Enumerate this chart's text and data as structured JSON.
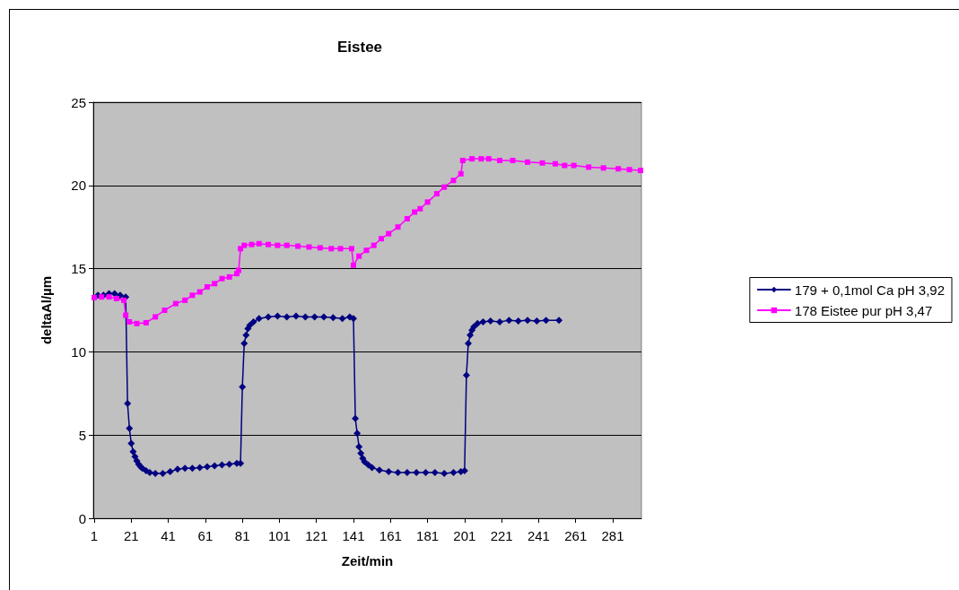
{
  "chart_data": {
    "type": "line",
    "title": "Eistee",
    "xlabel": "Zeit/min",
    "ylabel": "deltaAl/µm",
    "xlim": [
      0.5,
      296.5
    ],
    "xticks": [
      1,
      21,
      41,
      61,
      81,
      101,
      121,
      141,
      161,
      181,
      201,
      221,
      241,
      261,
      281
    ],
    "ylim": [
      0,
      25
    ],
    "yticks": [
      0,
      5,
      10,
      15,
      20,
      25
    ],
    "grid": "y",
    "legend": "right",
    "line_style": "solid",
    "series": [
      {
        "name": "179 + 0,1mol Ca pH 3,92",
        "color": "#000080",
        "marker": "diamond",
        "x": [
          3,
          6,
          9,
          12,
          15,
          18,
          19,
          20,
          21,
          22,
          23,
          24,
          25,
          26,
          27,
          29,
          31,
          34,
          38,
          42,
          46,
          50,
          54,
          58,
          62,
          66,
          70,
          74,
          78,
          80,
          81,
          82,
          83,
          84,
          85,
          87,
          90,
          95,
          100,
          105,
          110,
          115,
          120,
          125,
          130,
          135,
          139,
          141,
          142,
          143,
          144,
          145,
          146,
          147,
          149,
          151,
          155,
          160,
          165,
          170,
          175,
          180,
          185,
          190,
          195,
          199,
          201,
          202,
          203,
          204,
          205,
          206,
          208,
          211,
          215,
          220,
          225,
          230,
          235,
          240,
          245,
          252
        ],
        "values": [
          13.4,
          13.4,
          13.5,
          13.5,
          13.4,
          13.3,
          6.9,
          5.4,
          4.5,
          4.0,
          3.7,
          3.45,
          3.25,
          3.1,
          3.0,
          2.85,
          2.75,
          2.7,
          2.7,
          2.8,
          2.95,
          3.0,
          3.0,
          3.05,
          3.1,
          3.15,
          3.2,
          3.25,
          3.3,
          3.3,
          7.9,
          10.5,
          11.0,
          11.4,
          11.6,
          11.8,
          12.0,
          12.1,
          12.15,
          12.1,
          12.15,
          12.1,
          12.1,
          12.1,
          12.05,
          12.0,
          12.1,
          12.0,
          6.0,
          5.1,
          4.3,
          3.9,
          3.6,
          3.4,
          3.2,
          3.05,
          2.9,
          2.8,
          2.75,
          2.75,
          2.75,
          2.75,
          2.75,
          2.7,
          2.75,
          2.8,
          2.85,
          8.6,
          10.5,
          11.0,
          11.3,
          11.5,
          11.7,
          11.8,
          11.85,
          11.8,
          11.9,
          11.85,
          11.9,
          11.85,
          11.9,
          11.9
        ]
      },
      {
        "name": "178 Eistee pur pH 3,47",
        "color": "#ff00ff",
        "marker": "square",
        "x": [
          1,
          5,
          9,
          13,
          17,
          18,
          20,
          24,
          29,
          34,
          39,
          45,
          50,
          54,
          58,
          62,
          66,
          70,
          74,
          78,
          79,
          80,
          82,
          86,
          90,
          95,
          100,
          105,
          111,
          117,
          123,
          129,
          134,
          140,
          141,
          144,
          148,
          152,
          156,
          160,
          165,
          170,
          174,
          177,
          181,
          186,
          190,
          195,
          199,
          200,
          205,
          210,
          214,
          220,
          227,
          235,
          243,
          250,
          255,
          260,
          268,
          276,
          284,
          290,
          296
        ],
        "values": [
          13.26,
          13.3,
          13.3,
          13.2,
          13.1,
          12.2,
          11.8,
          11.7,
          11.75,
          12.1,
          12.5,
          12.9,
          13.1,
          13.4,
          13.6,
          13.9,
          14.1,
          14.4,
          14.5,
          14.7,
          14.9,
          16.2,
          16.4,
          16.45,
          16.5,
          16.45,
          16.4,
          16.4,
          16.35,
          16.3,
          16.25,
          16.2,
          16.2,
          16.2,
          15.2,
          15.75,
          16.1,
          16.4,
          16.8,
          17.1,
          17.5,
          18.0,
          18.4,
          18.6,
          19.0,
          19.5,
          19.9,
          20.3,
          20.7,
          21.5,
          21.6,
          21.6,
          21.6,
          21.5,
          21.5,
          21.4,
          21.35,
          21.3,
          21.2,
          21.2,
          21.1,
          21.05,
          21.0,
          20.95,
          20.9
        ]
      }
    ]
  }
}
